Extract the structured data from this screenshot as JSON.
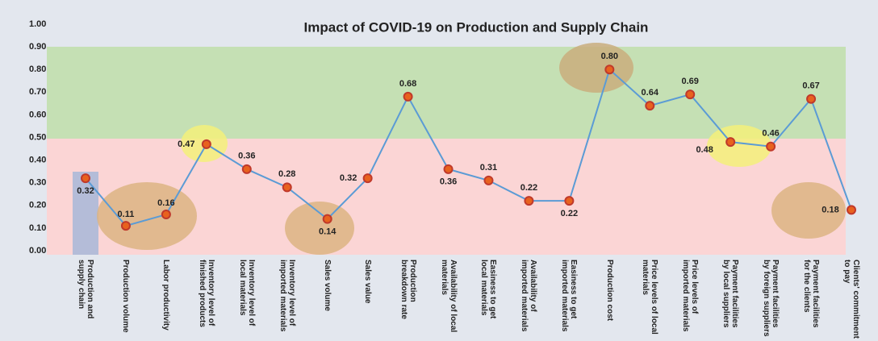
{
  "chart_data": {
    "type": "line",
    "title": "Impact of COVID-19 on Production and Supply Chain",
    "categories": [
      "Production and supply chain",
      "Production volume",
      "Labor productivity",
      "Inventory level of finished products",
      "Inventory level of local materials",
      "Inventory level of imported materials",
      "Sales volume",
      "Sales value",
      "Production breakdown rate",
      "Availability of local materials",
      "Easiness to get local materials",
      "Availability of imported materials",
      "Easiness to get imported materials",
      "Production cost",
      "Price levels of local materials",
      "Price levels of imported materials",
      "Payment facilities by local suppliers",
      "Payment facilities by foreign suppliers",
      "Payment facilities for the clients",
      "Clients' commitment to pay"
    ],
    "values": [
      0.32,
      0.11,
      0.16,
      0.47,
      0.36,
      0.28,
      0.14,
      0.32,
      0.68,
      0.36,
      0.31,
      0.22,
      0.22,
      0.8,
      0.64,
      0.69,
      0.48,
      0.46,
      0.67,
      0.18
    ],
    "value_labels": [
      "0.32",
      "0.11",
      "0.16",
      "0.47",
      "0.36",
      "0.28",
      "0.14",
      "0.32",
      "0.68",
      "0.36",
      "0.31",
      "0.22",
      "0.22",
      "0.80",
      "0.64",
      "0.69",
      "0.48",
      "0.46",
      "0.67",
      "0.18"
    ],
    "color": "#5b9bd5",
    "marker_color": "#c0392b",
    "ylim": [
      0,
      1
    ],
    "yticks": [
      {
        "value": 0,
        "label": "0.00"
      },
      {
        "value": 0.1,
        "label": "0.10"
      },
      {
        "value": 0.2,
        "label": "0.20"
      },
      {
        "value": 0.3,
        "label": "0.30"
      },
      {
        "value": 0.4,
        "label": "0.40"
      },
      {
        "value": 0.5,
        "label": "0.50"
      },
      {
        "value": 0.6,
        "label": "0.60"
      },
      {
        "value": 0.7,
        "label": "0.70"
      },
      {
        "value": 0.8,
        "label": "0.80"
      },
      {
        "value": 0.9,
        "label": "0.90"
      },
      {
        "value": 1,
        "label": "1.00"
      }
    ],
    "grid": false
  }
}
